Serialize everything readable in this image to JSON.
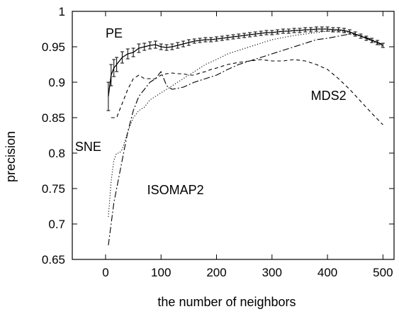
{
  "chart_data": {
    "type": "line",
    "xlabel": "the number of neighbors",
    "ylabel": "precision",
    "xlim": [
      -60,
      520
    ],
    "ylim": [
      0.65,
      1.0
    ],
    "x_ticks": [
      0,
      100,
      200,
      300,
      400,
      500
    ],
    "y_ticks": [
      0.65,
      0.7,
      0.75,
      0.8,
      0.85,
      0.9,
      0.95,
      1.0
    ],
    "x_tick_labels": [
      "0",
      "100",
      "200",
      "300",
      "400",
      "500"
    ],
    "y_tick_labels": [
      "0.65",
      "0.7",
      "0.75",
      "0.8",
      "0.85",
      "0.9",
      "0.95",
      "1"
    ],
    "grid": false,
    "colors": {
      "line": "#000000",
      "background": "#ffffff"
    },
    "series": [
      {
        "name": "PE",
        "style": "solid",
        "error_bars": true,
        "x": [
          5,
          10,
          15,
          20,
          30,
          40,
          50,
          60,
          70,
          80,
          90,
          100,
          110,
          120,
          130,
          140,
          150,
          160,
          170,
          180,
          190,
          200,
          210,
          220,
          230,
          240,
          250,
          260,
          270,
          280,
          290,
          300,
          310,
          320,
          330,
          340,
          350,
          360,
          370,
          380,
          390,
          400,
          410,
          420,
          430,
          440,
          450,
          460,
          470,
          480,
          490,
          500
        ],
        "values": [
          0.88,
          0.91,
          0.92,
          0.925,
          0.935,
          0.94,
          0.942,
          0.948,
          0.95,
          0.952,
          0.953,
          0.95,
          0.949,
          0.95,
          0.952,
          0.954,
          0.956,
          0.958,
          0.959,
          0.96,
          0.96,
          0.961,
          0.962,
          0.963,
          0.964,
          0.965,
          0.966,
          0.967,
          0.968,
          0.969,
          0.97,
          0.97,
          0.971,
          0.972,
          0.972,
          0.973,
          0.973,
          0.974,
          0.974,
          0.975,
          0.975,
          0.975,
          0.974,
          0.974,
          0.973,
          0.971,
          0.968,
          0.965,
          0.962,
          0.959,
          0.956,
          0.952
        ],
        "error": [
          0.02,
          0.015,
          0.012,
          0.01,
          0.008,
          0.007,
          0.006,
          0.006,
          0.005,
          0.005,
          0.005,
          0.004,
          0.004,
          0.004,
          0.004,
          0.004,
          0.004,
          0.003,
          0.003,
          0.003,
          0.003,
          0.003,
          0.003,
          0.003,
          0.003,
          0.003,
          0.003,
          0.003,
          0.003,
          0.003,
          0.003,
          0.003,
          0.003,
          0.003,
          0.003,
          0.003,
          0.003,
          0.003,
          0.003,
          0.003,
          0.003,
          0.003,
          0.003,
          0.003,
          0.003,
          0.003,
          0.003,
          0.003,
          0.003,
          0.003,
          0.003,
          0.003
        ]
      },
      {
        "name": "MDS2",
        "style": "dashed",
        "x": [
          10,
          20,
          30,
          40,
          50,
          60,
          70,
          80,
          90,
          100,
          110,
          120,
          130,
          140,
          150,
          160,
          170,
          180,
          190,
          200,
          220,
          240,
          260,
          280,
          300,
          320,
          340,
          360,
          380,
          400,
          420,
          440,
          460,
          480,
          500
        ],
        "values": [
          0.85,
          0.85,
          0.87,
          0.89,
          0.905,
          0.91,
          0.905,
          0.905,
          0.905,
          0.91,
          0.912,
          0.913,
          0.912,
          0.912,
          0.91,
          0.91,
          0.913,
          0.915,
          0.918,
          0.92,
          0.925,
          0.928,
          0.93,
          0.932,
          0.93,
          0.93,
          0.932,
          0.93,
          0.925,
          0.918,
          0.905,
          0.89,
          0.873,
          0.856,
          0.84
        ]
      },
      {
        "name": "SNE",
        "style": "dotted",
        "x": [
          5,
          10,
          15,
          20,
          25,
          30,
          40,
          50,
          60,
          70,
          80,
          90,
          100,
          110,
          120,
          130,
          140,
          150,
          160,
          180,
          200,
          220,
          240,
          260,
          280,
          300,
          320,
          340,
          360,
          380,
          400,
          420,
          440,
          460,
          480,
          500
        ],
        "values": [
          0.71,
          0.76,
          0.79,
          0.8,
          0.8,
          0.805,
          0.83,
          0.85,
          0.86,
          0.865,
          0.875,
          0.88,
          0.885,
          0.89,
          0.895,
          0.9,
          0.905,
          0.91,
          0.915,
          0.925,
          0.932,
          0.94,
          0.945,
          0.95,
          0.955,
          0.96,
          0.963,
          0.966,
          0.968,
          0.97,
          0.972,
          0.973,
          0.97,
          0.965,
          0.958,
          0.95
        ]
      },
      {
        "name": "ISOMAP2",
        "style": "dashdot",
        "x": [
          5,
          10,
          15,
          20,
          30,
          40,
          50,
          60,
          70,
          80,
          90,
          100,
          110,
          120,
          140,
          160,
          180,
          200,
          220,
          240,
          260,
          280,
          300,
          320,
          340,
          360,
          380,
          400,
          420,
          440,
          460,
          480,
          500
        ],
        "values": [
          0.67,
          0.7,
          0.73,
          0.75,
          0.79,
          0.83,
          0.86,
          0.88,
          0.89,
          0.9,
          0.905,
          0.915,
          0.895,
          0.89,
          0.893,
          0.9,
          0.905,
          0.91,
          0.918,
          0.925,
          0.93,
          0.935,
          0.94,
          0.945,
          0.95,
          0.955,
          0.96,
          0.962,
          0.965,
          0.968,
          0.966,
          0.96,
          0.953
        ]
      }
    ],
    "annotations": [
      {
        "text": "PE",
        "x": 0,
        "y": 0.963
      },
      {
        "text": "MDS2",
        "x": 370,
        "y": 0.875
      },
      {
        "text": "SNE",
        "x": -55,
        "y": 0.803
      },
      {
        "text": "ISOMAP2",
        "x": 75,
        "y": 0.742
      }
    ]
  }
}
